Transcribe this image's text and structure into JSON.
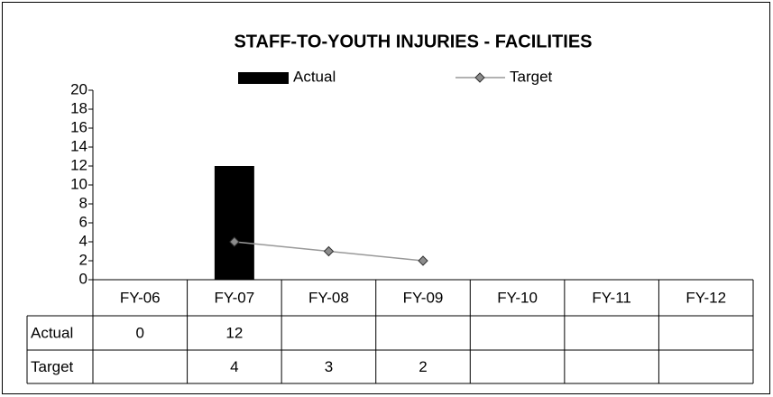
{
  "chart_data": {
    "type": "bar",
    "title": "STAFF-TO-YOUTH INJURIES - FACILITIES",
    "categories": [
      "FY-06",
      "FY-07",
      "FY-08",
      "FY-09",
      "FY-10",
      "FY-11",
      "FY-12"
    ],
    "series": [
      {
        "name": "Actual",
        "type": "bar",
        "color": "#000000",
        "values": [
          0,
          12,
          null,
          null,
          null,
          null,
          null
        ]
      },
      {
        "name": "Target",
        "type": "line",
        "color": "#999999",
        "marker_color": "#8c8c8c",
        "values": [
          null,
          4,
          3,
          2,
          null,
          null,
          null
        ]
      }
    ],
    "ylim": [
      0,
      20
    ],
    "yticks": [
      0,
      2,
      4,
      6,
      8,
      10,
      12,
      14,
      16,
      18,
      20
    ],
    "legend": "top",
    "data_table": true
  }
}
